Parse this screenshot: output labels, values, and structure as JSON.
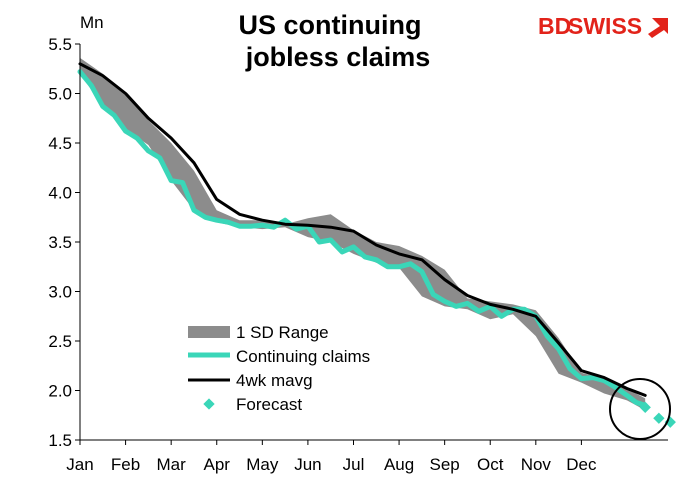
{
  "chart_data": {
    "type": "line",
    "title_line1": "US continuing",
    "title_line2": "jobless claims",
    "ylabel": "Mn",
    "ylim": [
      1.5,
      5.5
    ],
    "yticks": [
      "5.5",
      "5.0",
      "4.5",
      "4.0",
      "3.5",
      "3.0",
      "2.5",
      "2.0",
      "1.5"
    ],
    "ytick_values": [
      5.5,
      5.0,
      4.5,
      4.0,
      3.5,
      3.0,
      2.5,
      2.0,
      1.5
    ],
    "xlim": [
      0,
      12.9
    ],
    "categories": [
      "Jan",
      "Feb",
      "Mar",
      "Apr",
      "May",
      "Jun",
      "Jul",
      "Aug",
      "Sep",
      "Oct",
      "Nov",
      "Dec"
    ],
    "grid": false,
    "legend_placement": "bottom-left",
    "series": [
      {
        "name": "1 SD Range",
        "kind": "band",
        "color": "#8c8c8c",
        "x": [
          0,
          0.5,
          1.0,
          1.5,
          2.0,
          2.5,
          3.0,
          3.5,
          4.0,
          4.5,
          5.0,
          5.5,
          6.0,
          6.5,
          7.0,
          7.5,
          8.0,
          8.5,
          9.0,
          9.5,
          10.0,
          10.5,
          11.0,
          11.5,
          12.0,
          12.4
        ],
        "upper": [
          5.36,
          5.2,
          4.99,
          4.73,
          4.5,
          4.22,
          3.82,
          3.72,
          3.72,
          3.68,
          3.74,
          3.78,
          3.62,
          3.5,
          3.46,
          3.36,
          3.22,
          2.93,
          2.9,
          2.87,
          2.81,
          2.53,
          2.18,
          2.12,
          2.02,
          1.92
        ],
        "lower": [
          5.2,
          4.87,
          4.64,
          4.48,
          4.12,
          3.82,
          3.7,
          3.65,
          3.63,
          3.65,
          3.55,
          3.5,
          3.38,
          3.29,
          3.24,
          2.95,
          2.85,
          2.82,
          2.72,
          2.77,
          2.55,
          2.17,
          2.08,
          1.97,
          1.9,
          1.8
        ]
      },
      {
        "name": "Continuing claims",
        "kind": "line",
        "color": "#3ad6b8",
        "x": [
          0,
          0.25,
          0.5,
          0.75,
          1.0,
          1.25,
          1.5,
          1.75,
          2.0,
          2.25,
          2.5,
          2.75,
          3.0,
          3.25,
          3.5,
          3.75,
          4.0,
          4.25,
          4.5,
          4.75,
          5.0,
          5.25,
          5.5,
          5.75,
          6.0,
          6.25,
          6.5,
          6.75,
          7.0,
          7.25,
          7.5,
          7.75,
          8.0,
          8.25,
          8.5,
          8.75,
          9.0,
          9.25,
          9.5,
          9.75,
          10.0,
          10.25,
          10.5,
          10.75,
          11.0,
          11.25,
          11.5,
          11.75,
          12.0,
          12.2,
          12.4
        ],
        "values": [
          5.22,
          5.08,
          4.87,
          4.78,
          4.62,
          4.55,
          4.42,
          4.35,
          4.12,
          4.1,
          3.82,
          3.75,
          3.72,
          3.7,
          3.66,
          3.66,
          3.67,
          3.65,
          3.72,
          3.63,
          3.66,
          3.5,
          3.52,
          3.4,
          3.45,
          3.35,
          3.32,
          3.25,
          3.25,
          3.28,
          3.2,
          2.97,
          2.9,
          2.85,
          2.88,
          2.8,
          2.85,
          2.75,
          2.82,
          2.82,
          2.75,
          2.55,
          2.42,
          2.22,
          2.12,
          2.13,
          2.1,
          2.03,
          1.95,
          1.88,
          1.85
        ]
      },
      {
        "name": "4wk mavg",
        "kind": "line",
        "color": "#000000",
        "x": [
          0,
          0.5,
          1.0,
          1.5,
          2.0,
          2.5,
          3.0,
          3.5,
          4.0,
          4.5,
          5.0,
          5.5,
          6.0,
          6.5,
          7.0,
          7.5,
          8.0,
          8.5,
          9.0,
          9.5,
          10.0,
          10.5,
          11.0,
          11.5,
          12.0,
          12.4
        ],
        "values": [
          5.3,
          5.18,
          5.0,
          4.75,
          4.55,
          4.3,
          3.93,
          3.78,
          3.72,
          3.68,
          3.67,
          3.65,
          3.61,
          3.47,
          3.38,
          3.32,
          3.12,
          2.96,
          2.87,
          2.82,
          2.75,
          2.48,
          2.2,
          2.13,
          2.02,
          1.95
        ]
      },
      {
        "name": "Forecast",
        "kind": "points",
        "color": "#3ad6b8",
        "x": [
          12.4,
          12.7,
          12.95
        ],
        "values": [
          1.83,
          1.72,
          1.68
        ]
      }
    ]
  },
  "logo": {
    "text_bd": "BD",
    "text_swiss": "SWISS",
    "color": "#e2231a"
  },
  "annotation": {
    "shape": "circle",
    "stroke": "#000000"
  }
}
